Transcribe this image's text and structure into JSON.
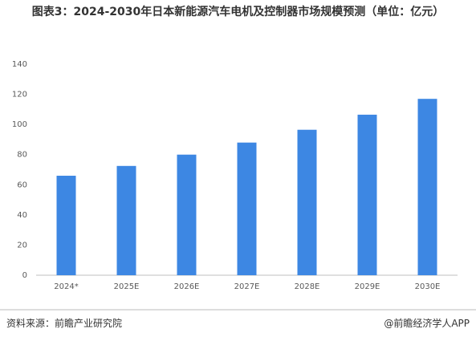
{
  "chart_data": {
    "type": "bar",
    "title": "图表3：2024-2030年日本新能源汽车电机及控制器市场规模预测（单位：亿元）",
    "source": "资料来源：前瞻产业研究院",
    "brand": "@前瞻经济学人APP",
    "categories": [
      "2024*",
      "2025E",
      "2026E",
      "2027E",
      "2028E",
      "2029E",
      "2030E"
    ],
    "values": [
      66,
      72.5,
      80,
      88,
      96.5,
      106.5,
      117
    ],
    "color": "#3d87e3",
    "ylim": [
      0,
      140
    ],
    "yticks": [
      0,
      20,
      40,
      60,
      80,
      100,
      120,
      140
    ],
    "grid": false
  }
}
